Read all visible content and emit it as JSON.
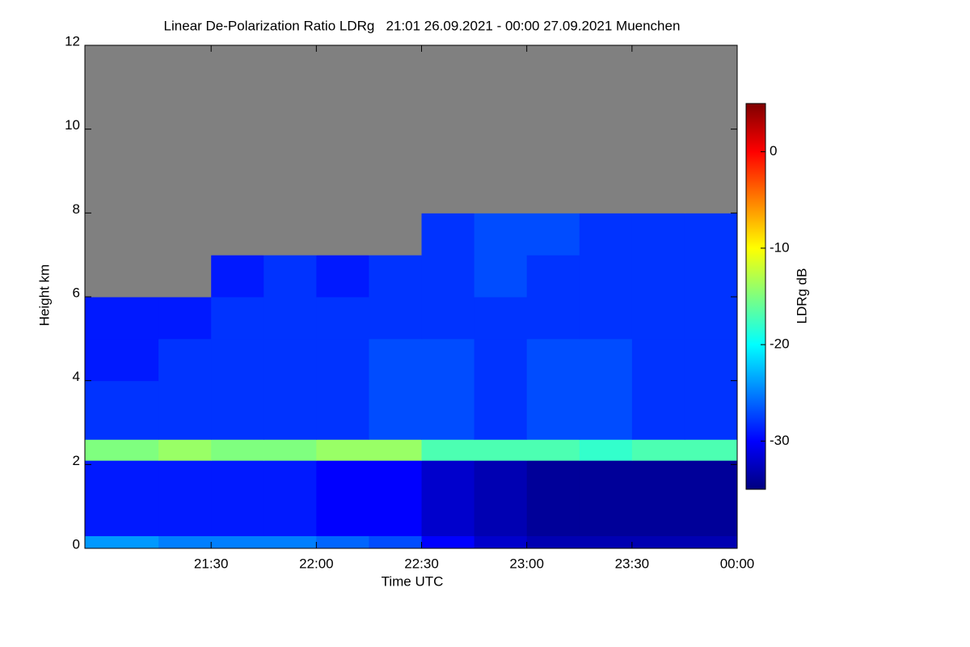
{
  "chart_data": {
    "type": "heatmap",
    "title": "Linear De-Polarization Ratio LDRg   21:01 26.09.2021 - 00:00 27.09.2021 Muenchen",
    "xlabel": "Time UTC",
    "ylabel": "Height km",
    "colorbar_label": "LDRg dB",
    "xlim": [
      20.9,
      24.0
    ],
    "xticks": [
      {
        "value": 21.5,
        "label": "21:30"
      },
      {
        "value": 22,
        "label": "22:00"
      },
      {
        "value": 22.5,
        "label": "22:30"
      },
      {
        "value": 23,
        "label": "23:00"
      },
      {
        "value": 23.5,
        "label": "23:30"
      },
      {
        "value": 24,
        "label": "00:00"
      }
    ],
    "ylim": [
      0,
      12
    ],
    "yticks": [
      0,
      2,
      4,
      6,
      8,
      10,
      12
    ],
    "clim": [
      -35,
      5
    ],
    "cticks": [
      -30,
      -20,
      -10,
      0
    ],
    "colormap": [
      "#00007f",
      "#0000ff",
      "#007fff",
      "#00ffff",
      "#7fff7f",
      "#ffff00",
      "#ff7f00",
      "#ff0000",
      "#7f0000"
    ],
    "missing_color": "#808080",
    "x": [
      20.9,
      21.25,
      21.5,
      21.75,
      22.0,
      22.25,
      22.5,
      22.75,
      23.0,
      23.25,
      23.5,
      23.75,
      24.0
    ],
    "y": [
      0,
      0.3,
      2.1,
      2.6,
      4,
      5,
      6,
      7,
      8,
      9,
      12
    ],
    "z": [
      [
        -24,
        -25,
        -25,
        -25,
        -26,
        -27,
        -30,
        -32,
        -33,
        -33,
        -33,
        -33
      ],
      [
        -29,
        -29,
        -29,
        -29,
        -30,
        -30,
        -32,
        -33,
        -34,
        -34,
        -34,
        -34
      ],
      [
        -15,
        -14,
        -15,
        -15,
        -14,
        -14,
        -17,
        -17,
        -17,
        -18,
        -17,
        -17
      ],
      [
        -28,
        -28,
        -28,
        -28,
        -28,
        -27,
        -27,
        -28,
        -27,
        -27,
        -28,
        -28
      ],
      [
        -29,
        -28,
        -28,
        -28,
        -28,
        -27,
        -27,
        -28,
        -27,
        -27,
        -28,
        -28
      ],
      [
        -29,
        -29,
        -28,
        -28,
        -28,
        -28,
        -28,
        -28,
        -28,
        -28,
        -28,
        -28
      ],
      [
        null,
        null,
        -29,
        -28,
        -29,
        -28,
        -28,
        -27,
        -28,
        -28,
        -28,
        -28
      ],
      [
        null,
        null,
        null,
        null,
        null,
        null,
        -28,
        -27,
        -27,
        -28,
        -28,
        -28
      ],
      [
        null,
        null,
        null,
        null,
        null,
        null,
        null,
        null,
        null,
        null,
        null,
        null
      ],
      [
        null,
        null,
        null,
        null,
        null,
        null,
        null,
        null,
        null,
        null,
        null,
        null
      ]
    ]
  }
}
